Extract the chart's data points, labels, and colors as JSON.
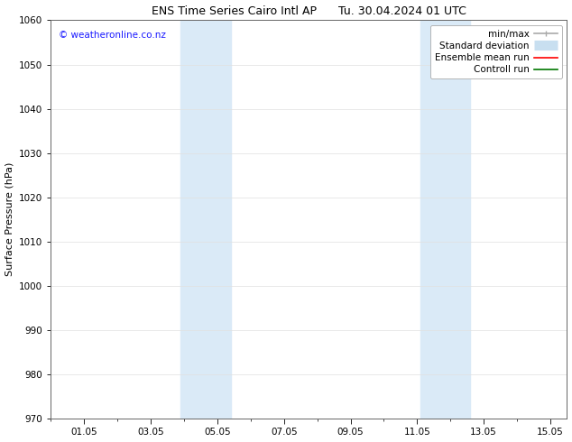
{
  "title_left": "ENS Time Series Cairo Intl AP",
  "title_right": "Tu. 30.04.2024 01 UTC",
  "ylabel": "Surface Pressure (hPa)",
  "ylim": [
    970,
    1060
  ],
  "yticks": [
    970,
    980,
    990,
    1000,
    1010,
    1020,
    1030,
    1040,
    1050,
    1060
  ],
  "xlim": [
    0.0,
    15.5
  ],
  "xtick_labels": [
    "01.05",
    "03.05",
    "05.05",
    "07.05",
    "09.05",
    "11.05",
    "13.05",
    "15.05"
  ],
  "xtick_positions": [
    1,
    3,
    5,
    7,
    9,
    11,
    13,
    15
  ],
  "minor_xtick_positions": [
    0,
    1,
    2,
    3,
    4,
    5,
    6,
    7,
    8,
    9,
    10,
    11,
    12,
    13,
    14,
    15
  ],
  "shaded_bands": [
    {
      "x_start": 3.9,
      "x_end": 5.4
    },
    {
      "x_start": 11.1,
      "x_end": 12.6
    }
  ],
  "shade_color": "#daeaf7",
  "watermark": "© weatheronline.co.nz",
  "watermark_color": "#1a1aff",
  "watermark_fontsize": 7.5,
  "legend_entries": [
    {
      "label": "min/max",
      "color": "#aaaaaa",
      "lw": 1.2,
      "style": "solid",
      "type": "errorbar"
    },
    {
      "label": "Standard deviation",
      "color": "#c8dff0",
      "lw": 8,
      "style": "solid",
      "type": "thick"
    },
    {
      "label": "Ensemble mean run",
      "color": "#ff0000",
      "lw": 1.2,
      "style": "solid",
      "type": "line"
    },
    {
      "label": "Controll run",
      "color": "#007700",
      "lw": 1.2,
      "style": "solid",
      "type": "line"
    }
  ],
  "bg_color": "#ffffff",
  "grid_color": "#e0e0e0",
  "title_fontsize": 9,
  "axis_fontsize": 8,
  "tick_fontsize": 7.5,
  "legend_fontsize": 7.5
}
